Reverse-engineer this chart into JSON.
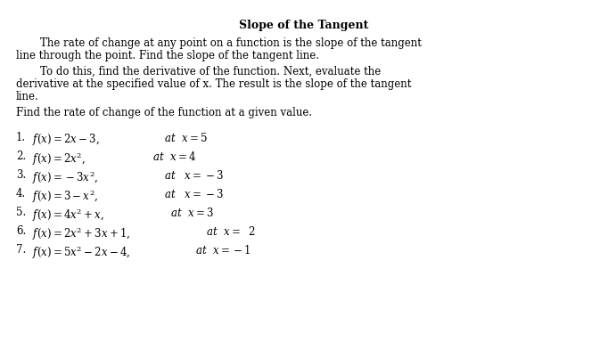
{
  "title": "Slope of the Tangent",
  "background": "#ffffff",
  "text_color": "#000000",
  "body_fontsize": 8.5,
  "title_fontsize": 9.0,
  "item_fontsize": 8.5,
  "para1_line1": "    The rate of change at any point on a function is the slope of the tangent",
  "para1_line2": "line through the point. Find the slope of the tangent line.",
  "para2_line1": "    To do this, find the derivative of the function. Next, evaluate the",
  "para2_line2": "derivative at the specified value of x. The result is the slope of the tangent",
  "para2_line3": "line.",
  "instruction": "Find the rate of change of the function at a given value.",
  "items": [
    {
      "num": "1.",
      "expr": "$f(x) = 2x - 3,$",
      "at": "$\\mathit{at}$  $x = 5$"
    },
    {
      "num": "2.",
      "expr": "$f(x) = 2x^2,$",
      "at": "$\\mathit{at}$  $x = 4$"
    },
    {
      "num": "3.",
      "expr": "$f(x) = -3x^2,$",
      "at": "$\\mathit{at}$   $x = -3$"
    },
    {
      "num": "4.",
      "expr": "$f(x) = 3 - x^2,$",
      "at": "$\\mathit{at}$   $x = -3$"
    },
    {
      "num": "5.",
      "expr": "$f(x) = 4x^2 + x,$",
      "at": "$\\mathit{at}$  $x = 3$"
    },
    {
      "num": "6.",
      "expr": "$f(x) = 2x^2 + 3x + 1,$",
      "at": "$\\mathit{at}$  $x = \\ \\ 2$"
    },
    {
      "num": "7.",
      "expr": "$f(x) = 5x^2 - 2x - 4,$",
      "at": "$\\mathit{at}$  $x = -1$"
    }
  ]
}
